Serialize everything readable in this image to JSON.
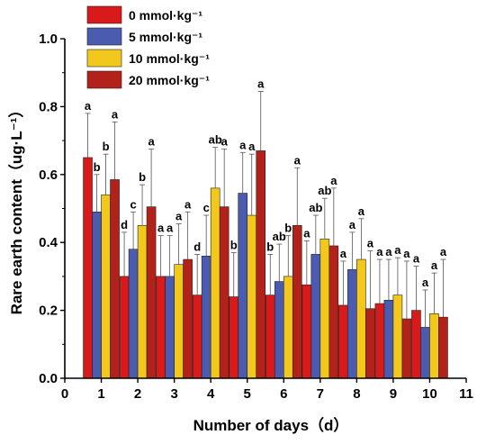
{
  "chart_data": {
    "type": "bar",
    "xlabel": "Number of days（d）",
    "ylabel": "Rare earth content（ug·L⁻¹）",
    "xlim": [
      0,
      11
    ],
    "ylim": [
      0.0,
      1.0
    ],
    "xticks": [
      "0",
      "1",
      "2",
      "3",
      "4",
      "5",
      "6",
      "7",
      "8",
      "9",
      "10",
      "11"
    ],
    "yticks": [
      "0.0",
      "0.2",
      "0.4",
      "0.6",
      "0.8",
      "1.0"
    ],
    "categories": [
      1,
      2,
      3,
      4,
      5,
      6,
      7,
      8,
      9,
      10
    ],
    "legend_position": "top-left",
    "series": [
      {
        "name": "0 mmol·kg⁻¹",
        "color": "#d91a1a",
        "values": [
          0.65,
          0.3,
          0.3,
          0.245,
          0.24,
          0.245,
          0.275,
          0.215,
          0.22,
          0.2
        ],
        "errors": [
          0.13,
          0.13,
          0.12,
          0.12,
          0.13,
          0.12,
          0.13,
          0.13,
          0.13,
          0.13
        ],
        "significance": [
          "a",
          "d",
          "a",
          "d",
          "b",
          "b",
          "a",
          "a",
          "a",
          "a"
        ]
      },
      {
        "name": "5 mmol·kg⁻¹",
        "color": "#4a5bb0",
        "values": [
          0.49,
          0.38,
          0.3,
          0.36,
          0.545,
          0.285,
          0.365,
          0.32,
          0.23,
          0.15
        ],
        "errors": [
          0.11,
          0.11,
          0.12,
          0.12,
          0.12,
          0.11,
          0.115,
          0.11,
          0.12,
          0.11
        ],
        "significance": [
          "b",
          "c",
          "a",
          "c",
          "a",
          "ab",
          "ab",
          "a",
          "a",
          "a"
        ]
      },
      {
        "name": "10 mmol·kg⁻¹",
        "color": "#f2c81c",
        "values": [
          0.54,
          0.45,
          0.335,
          0.56,
          0.48,
          0.3,
          0.41,
          0.35,
          0.245,
          0.19
        ],
        "errors": [
          0.12,
          0.12,
          0.12,
          0.12,
          0.18,
          0.12,
          0.12,
          0.12,
          0.11,
          0.12
        ],
        "significance": [
          "b",
          "b",
          "a",
          "ab",
          "a",
          "b",
          "ab",
          "a",
          "a",
          "a"
        ]
      },
      {
        "name": "20 mmol·kg⁻¹",
        "color": "#b3221a",
        "values": [
          0.585,
          0.505,
          0.35,
          0.505,
          0.67,
          0.45,
          0.39,
          0.205,
          0.175,
          0.18
        ],
        "errors": [
          0.17,
          0.17,
          0.14,
          0.17,
          0.175,
          0.17,
          0.17,
          0.17,
          0.17,
          0.17
        ],
        "significance": [
          "a",
          "a",
          "a",
          "a",
          "a",
          "a",
          "a",
          "a",
          "a",
          "a"
        ]
      }
    ]
  }
}
